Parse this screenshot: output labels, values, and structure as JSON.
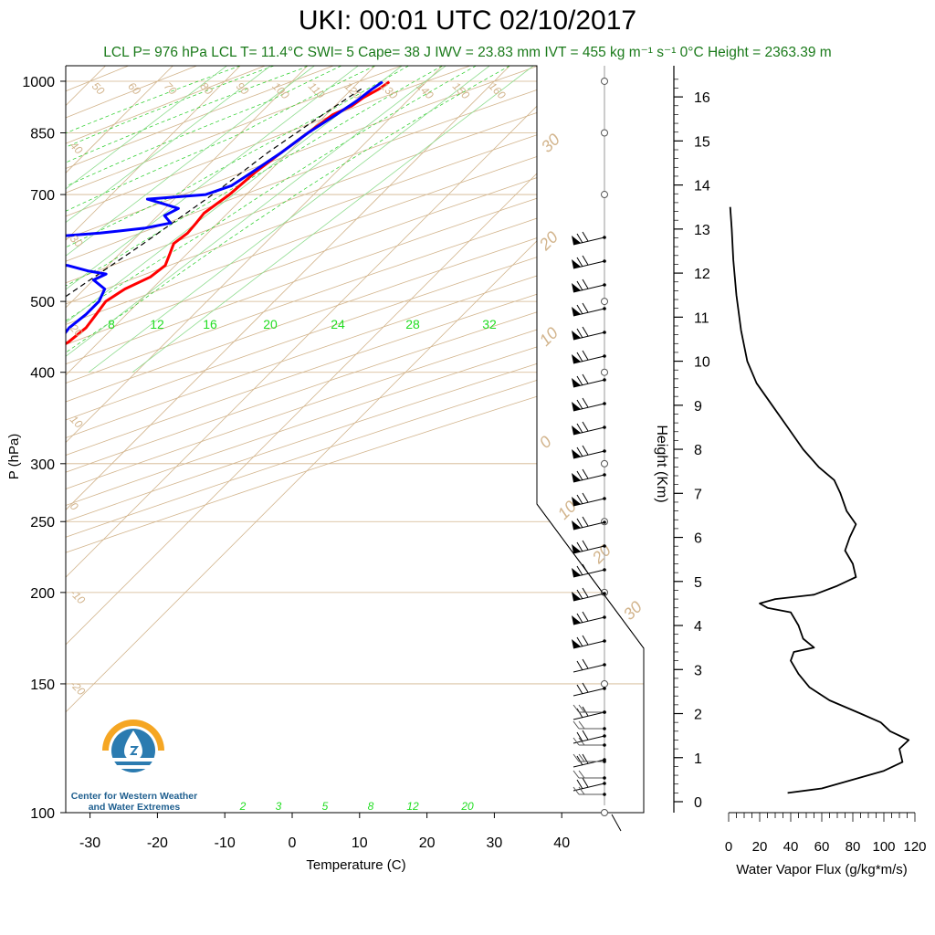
{
  "title": "UKI: 00:01 UTC 02/10/2017",
  "subtitle": "LCL P= 976 hPa  LCL T= 11.4°C  SWI= 5  Cape= 38 J  IWV = 23.83 mm  IVT = 455 kg m⁻¹ s⁻¹  0°C Height = 2363.39 m",
  "logo": {
    "line1": "Center for Western Weather",
    "line2": "and Water Extremes",
    "icon": "water-drop-sun-logo"
  },
  "colors": {
    "temperature": "#ff0000",
    "dewpoint": "#0000ff",
    "grid": "#d2b48c",
    "mixing": "#22cc22",
    "text_green": "#1a7a1a"
  },
  "chart_data": [
    {
      "type": "line",
      "name": "skew-t",
      "xlabel": "Temperature (C)",
      "ylabel": "P (hPa)",
      "xlim": [
        -34,
        52
      ],
      "ylim": [
        1050,
        100
      ],
      "y_scale": "log",
      "x_ticks": [
        -30,
        -20,
        -10,
        0,
        10,
        20,
        30,
        40
      ],
      "y_ticks": [
        100,
        150,
        200,
        250,
        300,
        400,
        500,
        700,
        850,
        1000
      ],
      "dry_adiabat_labels": [
        "40",
        "30",
        "20",
        "10",
        "0",
        "-10",
        "-20",
        "50",
        "60",
        "70",
        "80",
        "90",
        "100",
        "110",
        "120",
        "130",
        "140",
        "150",
        "160"
      ],
      "isotherm_labels": [
        "30",
        "20",
        "10",
        "0",
        "-10",
        "20",
        "30"
      ],
      "mixing_ratio_top_labels": [
        "8",
        "12",
        "16",
        "20",
        "24",
        "28",
        "32"
      ],
      "mixing_ratio_bottom_labels": [
        "2",
        "3",
        "5",
        "8",
        "12",
        "20"
      ],
      "series": [
        {
          "name": "temperature",
          "points": [
            [
              14.5,
              998
            ],
            [
              14,
              975
            ],
            [
              13,
              950
            ],
            [
              12.5,
              925
            ],
            [
              11,
              900
            ],
            [
              10,
              850
            ],
            [
              9,
              800
            ],
            [
              8,
              750
            ],
            [
              7.5,
              700
            ],
            [
              7,
              680
            ],
            [
              6.5,
              660
            ],
            [
              6.8,
              640
            ],
            [
              7,
              620
            ],
            [
              6.5,
              600
            ],
            [
              7.5,
              580
            ],
            [
              8.5,
              560
            ],
            [
              8,
              540
            ],
            [
              6,
              520
            ],
            [
              5,
              500
            ],
            [
              5.5,
              480
            ],
            [
              6,
              460
            ],
            [
              5.5,
              440
            ],
            [
              4,
              420
            ],
            [
              2.5,
              400
            ],
            [
              1,
              380
            ],
            [
              -1.5,
              350
            ],
            [
              -3,
              330
            ],
            [
              -4.5,
              310
            ],
            [
              -6,
              295
            ],
            [
              -8,
              270
            ],
            [
              -10,
              250
            ],
            [
              -12,
              230
            ],
            [
              -14,
              210
            ],
            [
              -15.5,
              195
            ],
            [
              -17,
              185
            ],
            [
              -16,
              180
            ],
            [
              -15.5,
              175
            ],
            [
              -13,
              170
            ],
            [
              -12,
              165
            ],
            [
              -11,
              160
            ],
            [
              -10,
              157
            ],
            [
              -9.5,
              155
            ]
          ]
        },
        {
          "name": "dewpoint",
          "points": [
            [
              13.5,
              998
            ],
            [
              13,
              975
            ],
            [
              12.5,
              940
            ],
            [
              11.5,
              900
            ],
            [
              10,
              850
            ],
            [
              9,
              800
            ],
            [
              7.5,
              750
            ],
            [
              6.5,
              720
            ],
            [
              4,
              700
            ],
            [
              -4,
              690
            ],
            [
              -1,
              680
            ],
            [
              2,
              670
            ],
            [
              1,
              655
            ],
            [
              3,
              640
            ],
            [
              0,
              630
            ],
            [
              -6,
              620
            ],
            [
              -20,
              605
            ],
            [
              -33,
              590
            ],
            [
              -25,
              580
            ],
            [
              -18,
              570
            ],
            [
              -6,
              560
            ],
            [
              -2,
              550
            ],
            [
              1,
              545
            ],
            [
              0,
              535
            ],
            [
              3,
              520
            ],
            [
              4,
              500
            ],
            [
              4,
              480
            ],
            [
              3.5,
              460
            ],
            [
              4,
              440
            ],
            [
              3,
              420
            ],
            [
              2,
              400
            ],
            [
              0,
              380
            ],
            [
              -3,
              360
            ],
            [
              -5,
              340
            ],
            [
              -6,
              320
            ],
            [
              -6.5,
              300
            ],
            [
              -8.5,
              280
            ],
            [
              -10,
              260
            ],
            [
              -13,
              250
            ],
            [
              -11,
              240
            ],
            [
              -13,
              230
            ],
            [
              -14,
              215
            ],
            [
              -16,
              200
            ],
            [
              -17,
              190
            ],
            [
              -18.5,
              180
            ],
            [
              -20,
              172
            ],
            [
              -22,
              168
            ],
            [
              -25,
              163
            ],
            [
              -27,
              158
            ],
            [
              -25,
              155
            ],
            [
              -24,
              152
            ]
          ]
        },
        {
          "name": "parcel",
          "points": [
            [
              11.4,
              976
            ],
            [
              9.5,
              900
            ],
            [
              7,
              800
            ],
            [
              5,
              700
            ],
            [
              2,
              600
            ],
            [
              -2,
              500
            ]
          ]
        }
      ]
    },
    {
      "type": "line",
      "name": "water-vapor-flux",
      "xlabel": "Water Vapor Flux (g/kg*m/s)",
      "ylabel": "Height (Km)",
      "xlim": [
        0,
        120
      ],
      "ylim": [
        0,
        16.5
      ],
      "x_ticks": [
        0,
        20,
        40,
        60,
        80,
        100,
        120
      ],
      "y_ticks": [
        0,
        1,
        2,
        3,
        4,
        5,
        6,
        7,
        8,
        9,
        10,
        11,
        12,
        13,
        14,
        15,
        16
      ],
      "points": [
        [
          38,
          0.2
        ],
        [
          60,
          0.3
        ],
        [
          80,
          0.5
        ],
        [
          100,
          0.7
        ],
        [
          112,
          0.9
        ],
        [
          110,
          1.2
        ],
        [
          116,
          1.4
        ],
        [
          104,
          1.6
        ],
        [
          98,
          1.8
        ],
        [
          85,
          2.0
        ],
        [
          65,
          2.3
        ],
        [
          52,
          2.6
        ],
        [
          45,
          2.9
        ],
        [
          40,
          3.2
        ],
        [
          42,
          3.4
        ],
        [
          55,
          3.5
        ],
        [
          48,
          3.7
        ],
        [
          45,
          4.0
        ],
        [
          40,
          4.3
        ],
        [
          25,
          4.4
        ],
        [
          20,
          4.5
        ],
        [
          30,
          4.6
        ],
        [
          55,
          4.7
        ],
        [
          70,
          4.9
        ],
        [
          82,
          5.1
        ],
        [
          80,
          5.4
        ],
        [
          75,
          5.7
        ],
        [
          78,
          6.0
        ],
        [
          82,
          6.3
        ],
        [
          76,
          6.6
        ],
        [
          72,
          7.0
        ],
        [
          68,
          7.3
        ],
        [
          58,
          7.6
        ],
        [
          48,
          8.0
        ],
        [
          38,
          8.5
        ],
        [
          28,
          9.0
        ],
        [
          18,
          9.5
        ],
        [
          12,
          10.0
        ],
        [
          8,
          10.7
        ],
        [
          5,
          11.5
        ],
        [
          3,
          12.3
        ],
        [
          2,
          13.0
        ],
        [
          1,
          13.5
        ]
      ]
    }
  ],
  "labels": {
    "height_axis_title": "Height (Km)"
  }
}
